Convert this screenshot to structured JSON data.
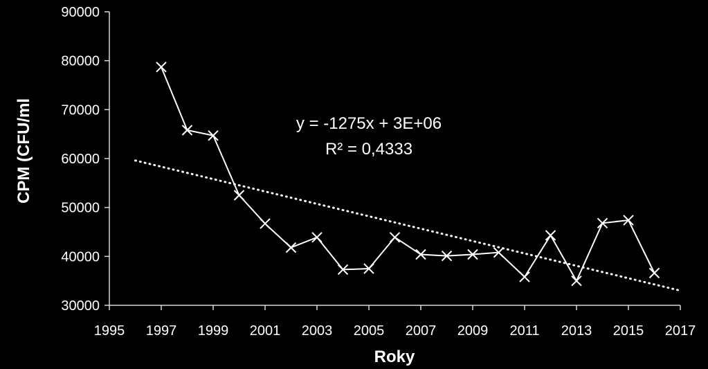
{
  "chart_data": {
    "type": "scatter",
    "title": "",
    "xlabel": "Roky",
    "ylabel": "CPM (CFU/ml",
    "xlim": [
      1995,
      2017
    ],
    "ylim": [
      30000,
      90000
    ],
    "x_ticks": [
      1995,
      1997,
      1999,
      2001,
      2003,
      2005,
      2007,
      2009,
      2011,
      2013,
      2015,
      2017
    ],
    "y_ticks": [
      30000,
      40000,
      50000,
      60000,
      70000,
      80000,
      90000
    ],
    "grid": false,
    "series": [
      {
        "marker": "x",
        "line": "solid",
        "color": "#ffffff",
        "x": [
          1997,
          1998,
          1999,
          2000,
          2001,
          2002,
          2003,
          2004,
          2005,
          2006,
          2007,
          2008,
          2009,
          2010,
          2011,
          2012,
          2013,
          2014,
          2015,
          2016
        ],
        "y": [
          78700,
          65800,
          64700,
          52500,
          46700,
          41800,
          43900,
          37300,
          37500,
          43900,
          40400,
          40100,
          40400,
          40800,
          35800,
          44300,
          35000,
          46800,
          47400,
          36600
        ]
      }
    ],
    "trendline": {
      "type": "linear",
      "style": "dotted",
      "color": "#ffffff",
      "x": [
        1996,
        2017
      ],
      "y": [
        59600,
        33000
      ]
    },
    "annotations": {
      "equation": "y = -1275x + 3E+06",
      "r_squared": "R² = 0,4333"
    }
  }
}
